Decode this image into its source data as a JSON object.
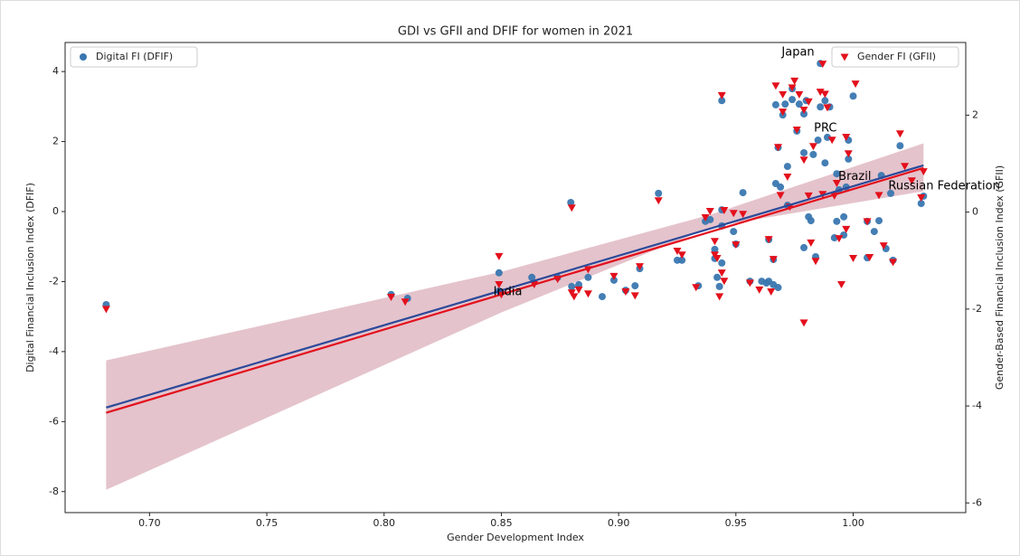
{
  "chart_data": {
    "type": "scatter",
    "title": "GDI vs GFII and DFIF for women in 2021",
    "xlabel": "Gender Development Index",
    "ylabel": "Digital Financial Inclusion Index (DFIF)",
    "y2label": "Gender-Based Financial Inclusion Index (GFII)",
    "xlim": [
      0.664,
      1.048
    ],
    "ylim": [
      -8.6,
      4.83
    ],
    "y2lim": [
      -6.2,
      3.5
    ],
    "xticks": [
      {
        "value": 0.7,
        "label": "0.70"
      },
      0.75,
      {
        "value": 0.8,
        "label": "0.80"
      },
      0.85,
      {
        "value": 0.9,
        "label": "0.90"
      },
      0.95,
      {
        "value": 1.0,
        "label": "1.00"
      }
    ],
    "yticks": [
      -8,
      -6,
      -4,
      -2,
      0,
      2,
      4
    ],
    "y2ticks": [
      -6,
      -4,
      -2,
      0,
      2
    ],
    "grid": false,
    "series": [
      {
        "name": "Digital FI (DFIF)",
        "color": "#3a77b0",
        "marker": "o",
        "axis": "y",
        "legend_loc": "upper left",
        "x": [
          0.6815,
          0.803,
          0.81,
          0.849,
          0.849,
          0.863,
          0.874,
          0.8796,
          0.88,
          0.883,
          0.887,
          0.893,
          0.898,
          0.903,
          0.907,
          0.909,
          0.917,
          0.925,
          0.927,
          0.934,
          0.937,
          0.939,
          0.941,
          0.941,
          0.942,
          0.943,
          0.944,
          0.944,
          0.944,
          0.944,
          0.949,
          0.95,
          0.953,
          0.956,
          0.961,
          0.963,
          0.964,
          0.964,
          0.966,
          0.966,
          0.967,
          0.967,
          0.968,
          0.968,
          0.969,
          0.97,
          0.971,
          0.972,
          0.972,
          0.974,
          0.974,
          0.976,
          0.977,
          0.979,
          0.979,
          0.979,
          0.98,
          0.981,
          0.982,
          0.983,
          0.984,
          0.985,
          0.986,
          0.986,
          0.988,
          0.988,
          0.989,
          0.99,
          0.992,
          0.993,
          0.993,
          0.994,
          0.996,
          0.996,
          0.997,
          0.998,
          0.998,
          1.0,
          1.006,
          1.006,
          1.009,
          1.011,
          1.012,
          1.014,
          1.016,
          1.017,
          1.02,
          1.029,
          1.03
        ],
        "values": [
          -2.66,
          -2.37,
          -2.48,
          -1.75,
          -2.27,
          -1.88,
          -1.88,
          0.26,
          -2.14,
          -2.09,
          -1.88,
          -2.43,
          -1.96,
          -2.25,
          -2.12,
          -1.63,
          0.52,
          -1.39,
          -1.39,
          -2.12,
          -0.28,
          -0.23,
          -1.08,
          -1.34,
          -1.88,
          -2.14,
          -1.47,
          -0.41,
          3.17,
          0.05,
          -0.57,
          -0.93,
          0.54,
          -1.99,
          -1.99,
          -2.04,
          -1.99,
          -0.8,
          -1.37,
          -2.09,
          0.8,
          3.05,
          -2.17,
          1.83,
          0.7,
          2.76,
          3.07,
          1.29,
          0.18,
          3.2,
          3.51,
          2.3,
          3.07,
          2.79,
          -1.03,
          1.68,
          3.17,
          -0.15,
          -0.26,
          1.63,
          -1.29,
          2.04,
          2.99,
          4.23,
          1.39,
          3.17,
          2.12,
          2.99,
          -0.75,
          -0.28,
          1.08,
          0.62,
          -0.67,
          -0.15,
          0.7,
          2.04,
          1.5,
          3.3,
          -0.28,
          -1.32,
          -0.57,
          -0.26,
          1.03,
          -1.06,
          0.52,
          -1.39,
          1.88,
          0.23,
          0.44
        ]
      },
      {
        "name": "Gender FI (GFII)",
        "color": "#e3101c",
        "marker": "v",
        "axis": "y2",
        "legend_loc": "upper right",
        "x": [
          0.6815,
          0.803,
          0.809,
          0.849,
          0.849,
          0.85,
          0.864,
          0.874,
          0.88,
          0.88,
          0.881,
          0.883,
          0.887,
          0.887,
          0.898,
          0.903,
          0.907,
          0.909,
          0.917,
          0.925,
          0.927,
          0.933,
          0.937,
          0.939,
          0.941,
          0.941,
          0.942,
          0.943,
          0.944,
          0.944,
          0.945,
          0.945,
          0.949,
          0.95,
          0.953,
          0.956,
          0.96,
          0.964,
          0.965,
          0.966,
          0.967,
          0.968,
          0.969,
          0.97,
          0.97,
          0.972,
          0.973,
          0.974,
          0.975,
          0.976,
          0.977,
          0.979,
          0.979,
          0.979,
          0.981,
          0.981,
          0.982,
          0.983,
          0.984,
          0.986,
          0.987,
          0.987,
          0.988,
          0.989,
          0.991,
          0.992,
          0.993,
          0.994,
          0.995,
          0.997,
          0.997,
          0.998,
          1.001,
          1.0,
          1.006,
          1.007,
          1.011,
          1.013,
          1.017,
          1.02,
          1.022,
          1.025,
          1.029,
          1.03
        ],
        "values": [
          -2.0,
          -1.75,
          -1.85,
          -0.91,
          -1.49,
          -1.7,
          -1.49,
          -1.38,
          0.09,
          -1.66,
          -1.74,
          -1.6,
          -1.18,
          -1.68,
          -1.32,
          -1.64,
          -1.72,
          -1.12,
          0.24,
          -0.8,
          -0.88,
          -1.55,
          -0.11,
          0.02,
          -0.6,
          -0.88,
          -0.95,
          -1.74,
          -1.25,
          2.41,
          0.04,
          -1.42,
          -0.02,
          -0.67,
          -0.04,
          -1.46,
          -1.6,
          -0.56,
          -1.64,
          -0.97,
          2.61,
          1.34,
          0.35,
          2.07,
          2.43,
          0.73,
          0.11,
          2.57,
          2.71,
          1.7,
          2.43,
          2.11,
          -2.28,
          1.08,
          2.28,
          0.34,
          -0.63,
          1.36,
          -1.01,
          2.48,
          0.37,
          3.06,
          2.44,
          2.16,
          1.49,
          0.34,
          0.6,
          -0.54,
          -1.49,
          -0.35,
          1.55,
          1.21,
          2.65,
          -0.95,
          -0.19,
          -0.93,
          0.35,
          -0.69,
          -1.03,
          1.62,
          0.95,
          0.65,
          0.3,
          0.84
        ]
      }
    ],
    "band": {
      "axis": "y2",
      "color": "#dfb8c3",
      "x": [
        0.6815,
        0.85,
        0.94,
        1.03
      ],
      "upper": [
        -3.06,
        -1.23,
        -0.04,
        1.42
      ],
      "lower": [
        -5.73,
        -2.07,
        -0.3,
        0.43
      ]
    },
    "fits": [
      {
        "axis": "y",
        "color": "#2c4a9a",
        "x": [
          0.6815,
          1.03
        ],
        "values": [
          -5.6,
          1.32
        ]
      },
      {
        "axis": "y2",
        "color": "#e3101c",
        "x": [
          0.6815,
          1.03
        ],
        "values": [
          -4.14,
          0.91
        ]
      }
    ],
    "annotations": [
      {
        "text": "Japan",
        "x": 0.9695,
        "y": 4.54
      },
      {
        "text": "PRC",
        "x": 0.9833,
        "y": 2.37
      },
      {
        "text": "Brazil",
        "x": 0.9937,
        "y": 1.0
      },
      {
        "text": "Russian Federation",
        "x": 1.015,
        "y": 0.72
      },
      {
        "text": "India",
        "x": 0.8466,
        "y": -2.3
      }
    ]
  }
}
